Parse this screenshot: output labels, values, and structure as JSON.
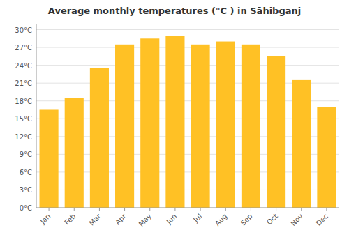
{
  "chart_data": {
    "type": "bar",
    "title": "Average monthly temperatures (°C ) in Sāhibganj",
    "categories": [
      "Jan",
      "Feb",
      "Mar",
      "Apr",
      "May",
      "Jun",
      "Jul",
      "Aug",
      "Sep",
      "Oct",
      "Nov",
      "Dec"
    ],
    "values": [
      16.5,
      18.5,
      23.5,
      27.5,
      28.5,
      29.0,
      27.5,
      28.0,
      27.5,
      25.5,
      21.5,
      17.0
    ],
    "color": "#FFC125",
    "ylim": [
      0,
      31
    ],
    "yticks": [
      {
        "value": 0,
        "label": "0°C"
      },
      {
        "value": 3,
        "label": "3°C"
      },
      {
        "value": 6,
        "label": "6°C"
      },
      {
        "value": 9,
        "label": "9°C"
      },
      {
        "value": 12,
        "label": "12°C"
      },
      {
        "value": 15,
        "label": "15°C"
      },
      {
        "value": 18,
        "label": "18°C"
      },
      {
        "value": 21,
        "label": "21°C"
      },
      {
        "value": 24,
        "label": "24°C"
      },
      {
        "value": 27,
        "label": "27°C"
      },
      {
        "value": 30,
        "label": "30°C"
      }
    ],
    "grid": true
  }
}
